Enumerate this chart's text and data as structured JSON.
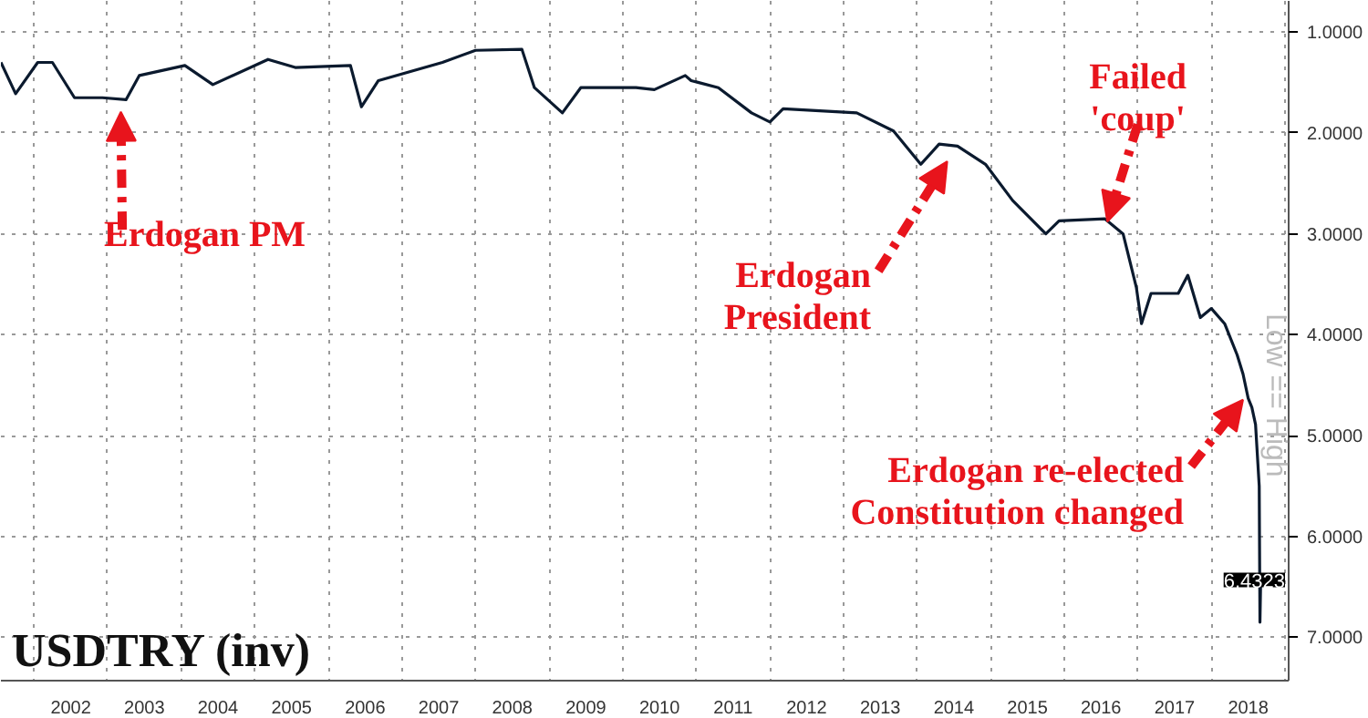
{
  "chart_data": {
    "type": "line",
    "title": "USDTRY (inv)",
    "x": [
      2001.55,
      2001.75,
      2002.05,
      2002.25,
      2002.55,
      2002.93,
      2003.25,
      2003.43,
      2004.05,
      2004.43,
      2005.18,
      2005.55,
      2006.3,
      2006.45,
      2006.68,
      2007.55,
      2008.0,
      2008.63,
      2008.8,
      2009.18,
      2009.43,
      2010.18,
      2010.43,
      2010.85,
      2010.93,
      2011.3,
      2011.75,
      2012.0,
      2012.18,
      2013.18,
      2013.68,
      2014.05,
      2014.3,
      2014.55,
      2014.93,
      2015.3,
      2015.75,
      2015.93,
      2016.55,
      2016.8,
      2016.98,
      2017.05,
      2017.18,
      2017.55,
      2017.68,
      2017.85,
      2018.0,
      2018.18,
      2018.35,
      2018.43,
      2018.5,
      2018.55,
      2018.6,
      2018.65,
      2018.66,
      2018.67
    ],
    "series": [
      {
        "color": "#0b1a2e",
        "values": [
          1.3,
          1.61,
          1.3,
          1.3,
          1.65,
          1.65,
          1.67,
          1.43,
          1.33,
          1.52,
          1.27,
          1.35,
          1.33,
          1.74,
          1.48,
          1.3,
          1.18,
          1.17,
          1.55,
          1.8,
          1.55,
          1.55,
          1.57,
          1.43,
          1.48,
          1.55,
          1.8,
          1.89,
          1.76,
          1.8,
          1.98,
          2.31,
          2.11,
          2.13,
          2.31,
          2.67,
          3.0,
          2.87,
          2.85,
          3.0,
          3.53,
          3.89,
          3.59,
          3.59,
          3.41,
          3.83,
          3.74,
          3.89,
          4.2,
          4.39,
          4.63,
          4.72,
          4.89,
          5.5,
          6.85,
          6.4323
        ],
        "value_labels": [
          null,
          null,
          null,
          null,
          null,
          null,
          null,
          null,
          null,
          null,
          null,
          null,
          null,
          null,
          null,
          null,
          null,
          null,
          null,
          null,
          null,
          null,
          null,
          null,
          null,
          null,
          null,
          null,
          null,
          null,
          null,
          null,
          null,
          null,
          null,
          null,
          null,
          null,
          null,
          null,
          null,
          null,
          null,
          null,
          null,
          null,
          null,
          null,
          null,
          null,
          null,
          null,
          null,
          null,
          null,
          "6.4323"
        ]
      }
    ],
    "xlim": [
      2001.55,
      2019.05
    ],
    "ylim": [
      7.43,
      0.69
    ],
    "xticks": [
      {
        "value": 2002,
        "label": null
      },
      {
        "value": 2002.5,
        "label": "2002"
      },
      {
        "value": 2003,
        "label": null
      },
      {
        "value": 2003.5,
        "label": "2003"
      },
      {
        "value": 2004,
        "label": null
      },
      {
        "value": 2004.5,
        "label": "2004"
      },
      {
        "value": 2005,
        "label": null
      },
      {
        "value": 2005.5,
        "label": "2005"
      },
      {
        "value": 2006,
        "label": null
      },
      {
        "value": 2006.5,
        "label": "2006"
      },
      {
        "value": 2007,
        "label": null
      },
      {
        "value": 2007.5,
        "label": "2007"
      },
      {
        "value": 2008,
        "label": null
      },
      {
        "value": 2008.5,
        "label": "2008"
      },
      {
        "value": 2009,
        "label": null
      },
      {
        "value": 2009.5,
        "label": "2009"
      },
      {
        "value": 2010,
        "label": null
      },
      {
        "value": 2010.5,
        "label": "2010"
      },
      {
        "value": 2011,
        "label": null
      },
      {
        "value": 2011.5,
        "label": "2011"
      },
      {
        "value": 2012,
        "label": null
      },
      {
        "value": 2012.5,
        "label": "2012"
      },
      {
        "value": 2013,
        "label": null
      },
      {
        "value": 2013.5,
        "label": "2013"
      },
      {
        "value": 2014,
        "label": null
      },
      {
        "value": 2014.5,
        "label": "2014"
      },
      {
        "value": 2015,
        "label": null
      },
      {
        "value": 2015.5,
        "label": "2015"
      },
      {
        "value": 2016,
        "label": null
      },
      {
        "value": 2016.5,
        "label": "2016"
      },
      {
        "value": 2017,
        "label": null
      },
      {
        "value": 2017.5,
        "label": "2017"
      },
      {
        "value": 2018,
        "label": null
      },
      {
        "value": 2018.5,
        "label": "2018"
      },
      {
        "value": 2019,
        "label": null
      }
    ],
    "yticks": [
      {
        "value": 1,
        "label": "1.0000"
      },
      {
        "value": 2,
        "label": "2.0000"
      },
      {
        "value": 3,
        "label": "3.0000"
      },
      {
        "value": 4,
        "label": "4.0000"
      },
      {
        "value": 5,
        "label": "5.0000"
      },
      {
        "value": 6,
        "label": "6.0000"
      },
      {
        "value": 7,
        "label": "7.0000"
      }
    ],
    "grid": true,
    "annotations": [
      {
        "text": "Erdogan PM",
        "x": 2003.2,
        "y": 1.7
      },
      {
        "text": "Erdogan\nPresident",
        "x": 2014.5,
        "y": 2.2
      },
      {
        "text": "Failed\n'coup'",
        "x": 2016.55,
        "y": 2.95
      },
      {
        "text": "Erdogan re-elected\nConstitution changed",
        "x": 2018.5,
        "y": 4.6
      },
      "Low == High"
    ]
  }
}
